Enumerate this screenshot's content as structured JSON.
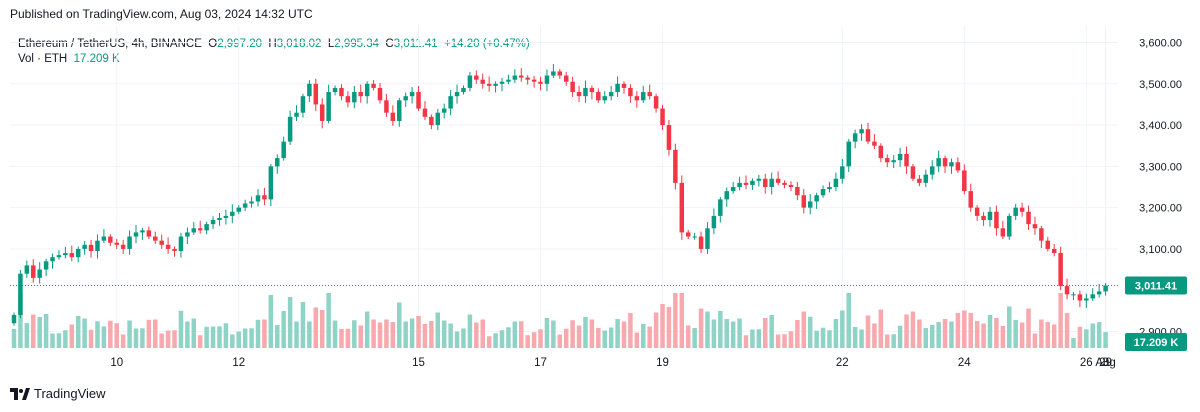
{
  "header": {
    "published": "Published on TradingView.com, Aug 03, 2024 14:32 UTC"
  },
  "legend": {
    "symbol": "Ethereum / TetherUS, 4h, BINANCE",
    "open_label": "O",
    "open": "2,997.20",
    "high_label": "H",
    "high": "3,018.02",
    "low_label": "L",
    "low": "2,995.34",
    "close_label": "C",
    "close": "3,011.41",
    "change": "+14.20 (+0.47%)",
    "vol_label": "Vol · ETH",
    "vol_value": "17.209 K"
  },
  "footer": {
    "brand": "TradingView"
  },
  "colors": {
    "up": "#089981",
    "down": "#f23645",
    "up_vol": "#8fd3c7",
    "down_vol": "#f7a9ad",
    "grid": "#f0f3fa",
    "axis_text": "#131722"
  },
  "chart_data": {
    "type": "candlestick",
    "ylim": [
      2860,
      3640
    ],
    "y_ticks": [
      "3,600.00",
      "3,500.00",
      "3,400.00",
      "3,300.00",
      "3,200.00",
      "3,100.00",
      "2,900.00"
    ],
    "y_tick_values": [
      3600,
      3500,
      3400,
      3300,
      3200,
      3100,
      2900
    ],
    "x_ticks": [
      "10",
      "12",
      "15",
      "17",
      "19",
      "22",
      "24",
      "26",
      "29",
      "Aug",
      "3"
    ],
    "x_tick_index": [
      16,
      35,
      63,
      82,
      101,
      129,
      148,
      167,
      195,
      213,
      232
    ],
    "last_price": "3,011.41",
    "last_price_value": 3011.41,
    "last_volume": "17.209 K",
    "grid": true,
    "candles": [],
    "seed_closes": [
      2940,
      3040,
      3060,
      3030,
      3050,
      3070,
      3080,
      3085,
      3090,
      3080,
      3100,
      3110,
      3095,
      3120,
      3130,
      3115,
      3110,
      3100,
      3130,
      3140,
      3145,
      3130,
      3120,
      3110,
      3100,
      3095,
      3130,
      3140,
      3150,
      3145,
      3160,
      3170,
      3175,
      3180,
      3190,
      3200,
      3210,
      3215,
      3230,
      3220,
      3300,
      3320,
      3360,
      3420,
      3430,
      3470,
      3500,
      3450,
      3410,
      3480,
      3490,
      3470,
      3455,
      3480,
      3470,
      3500,
      3490,
      3460,
      3430,
      3410,
      3460,
      3470,
      3480,
      3440,
      3420,
      3400,
      3430,
      3440,
      3470,
      3480,
      3490,
      3520,
      3510,
      3500,
      3495,
      3500,
      3505,
      3510,
      3520,
      3515,
      3510,
      3505,
      3500,
      3520,
      3530,
      3520,
      3505,
      3480,
      3470,
      3490,
      3480,
      3460,
      3470,
      3480,
      3500,
      3490,
      3470,
      3460,
      3480,
      3470,
      3440,
      3400,
      3340,
      3260,
      3140,
      3130,
      3130,
      3100,
      3150,
      3180,
      3220,
      3240,
      3250,
      3260,
      3255,
      3265,
      3270,
      3250,
      3270,
      3260,
      3255,
      3250,
      3230,
      3200,
      3215,
      3230,
      3245,
      3250,
      3270,
      3300,
      3360,
      3380,
      3390,
      3360,
      3350,
      3320,
      3310,
      3315,
      3330,
      3300,
      3270,
      3260,
      3280,
      3300,
      3320,
      3300,
      3310,
      3290,
      3240,
      3200,
      3180,
      3170,
      3190,
      3150,
      3130,
      3180,
      3200,
      3190,
      3160,
      3150,
      3120,
      3100,
      3090,
      3010,
      2990,
      2990,
      2975,
      2980,
      2990,
      2997,
      3011.41
    ]
  }
}
